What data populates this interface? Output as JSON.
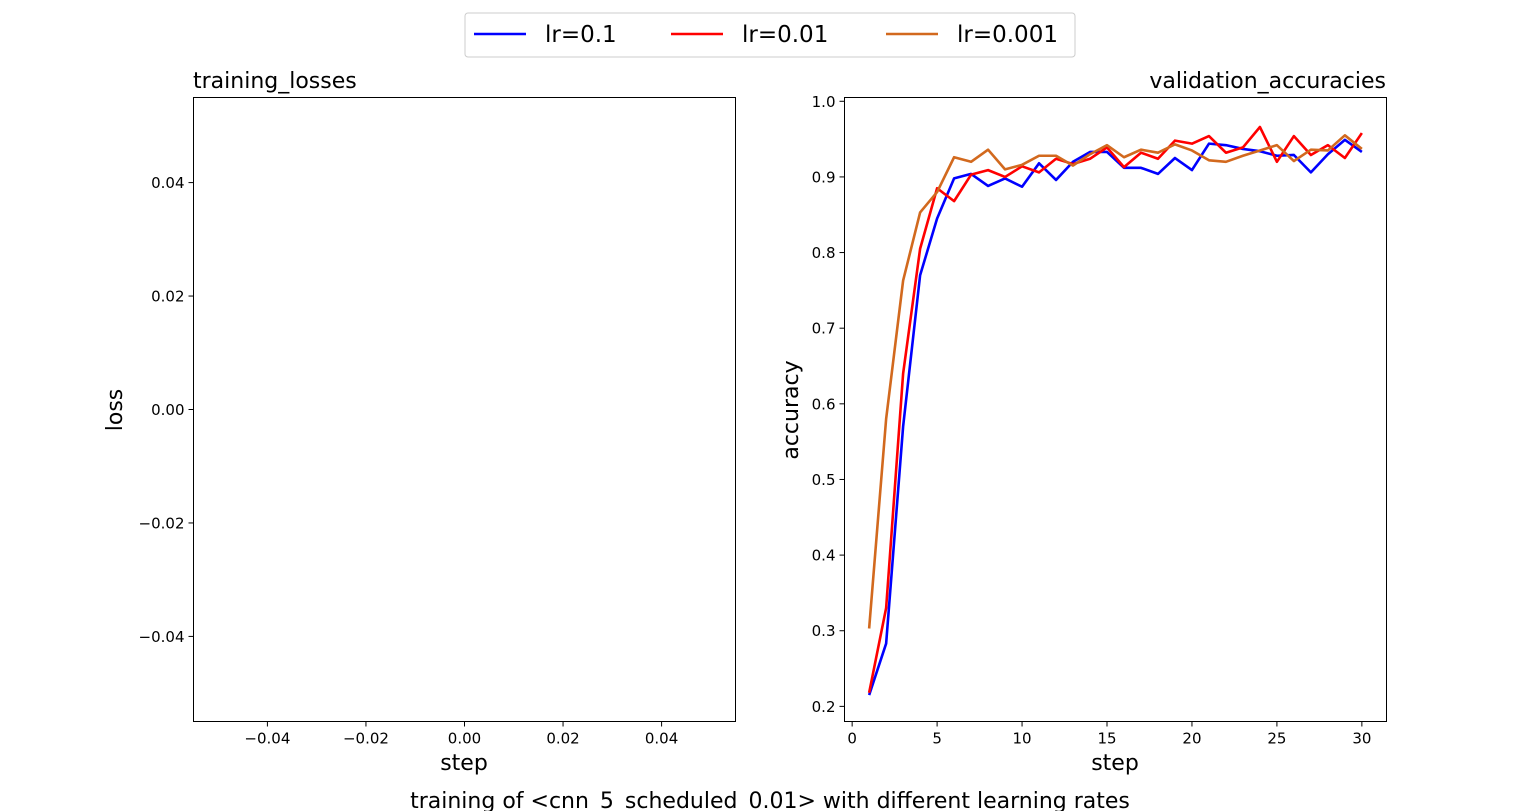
{
  "figure": {
    "suptitle": "training of <cnn_5_scheduled_0.01> with different learning rates"
  },
  "legend": {
    "placement": "top-center",
    "entries": [
      {
        "label": "lr=0.1",
        "color": "#0000ff"
      },
      {
        "label": "lr=0.01",
        "color": "#ff0000"
      },
      {
        "label": "lr=0.001",
        "color": "#d2691e"
      }
    ]
  },
  "chart_data": [
    {
      "type": "line",
      "title": "training_losses",
      "xlabel": "step",
      "ylabel": "loss",
      "xlim": [
        -0.055,
        0.055
      ],
      "ylim": [
        -0.055,
        0.055
      ],
      "xticks": [
        -0.04,
        -0.02,
        0.0,
        0.02,
        0.04
      ],
      "xtick_labels": [
        "−0.04",
        "−0.02",
        "0.00",
        "0.02",
        "0.04"
      ],
      "yticks": [
        -0.04,
        -0.02,
        0.0,
        0.02,
        0.04
      ],
      "ytick_labels": [
        "−0.04",
        "−0.02",
        "0.00",
        "0.02",
        "0.04"
      ],
      "grid": false,
      "series": []
    },
    {
      "type": "line",
      "title": "validation_accuracies",
      "xlabel": "step",
      "ylabel": "accuracy",
      "xlim": [
        -0.45,
        31.45
      ],
      "ylim": [
        0.18,
        1.005
      ],
      "xticks": [
        0,
        5,
        10,
        15,
        20,
        25,
        30
      ],
      "xtick_labels": [
        "0",
        "5",
        "10",
        "15",
        "20",
        "25",
        "30"
      ],
      "yticks": [
        0.2,
        0.3,
        0.4,
        0.5,
        0.6,
        0.7,
        0.8,
        0.9,
        1.0
      ],
      "ytick_labels": [
        "0.2",
        "0.3",
        "0.4",
        "0.5",
        "0.6",
        "0.7",
        "0.8",
        "0.9",
        "1.0"
      ],
      "grid": false,
      "x": [
        1,
        2,
        3,
        4,
        5,
        6,
        7,
        8,
        9,
        10,
        11,
        12,
        13,
        14,
        15,
        16,
        17,
        18,
        19,
        20,
        21,
        22,
        23,
        24,
        25,
        26,
        27,
        28,
        29,
        30
      ],
      "series": [
        {
          "name": "lr=0.1",
          "color": "#0000ff",
          "values": [
            0.215,
            0.283,
            0.57,
            0.77,
            0.845,
            0.898,
            0.904,
            0.888,
            0.898,
            0.887,
            0.918,
            0.896,
            0.92,
            0.933,
            0.933,
            0.912,
            0.912,
            0.904,
            0.925,
            0.909,
            0.944,
            0.942,
            0.937,
            0.934,
            0.928,
            0.929,
            0.906,
            0.93,
            0.949,
            0.933
          ]
        },
        {
          "name": "lr=0.01",
          "color": "#ff0000",
          "values": [
            0.218,
            0.33,
            0.64,
            0.805,
            0.885,
            0.868,
            0.903,
            0.909,
            0.9,
            0.914,
            0.906,
            0.924,
            0.917,
            0.924,
            0.939,
            0.913,
            0.932,
            0.924,
            0.948,
            0.944,
            0.954,
            0.932,
            0.939,
            0.966,
            0.92,
            0.954,
            0.929,
            0.942,
            0.925,
            0.958
          ]
        },
        {
          "name": "lr=0.001",
          "color": "#d2691e",
          "values": [
            0.303,
            0.58,
            0.763,
            0.853,
            0.88,
            0.926,
            0.92,
            0.936,
            0.91,
            0.916,
            0.928,
            0.928,
            0.915,
            0.93,
            0.942,
            0.926,
            0.936,
            0.932,
            0.943,
            0.935,
            0.922,
            0.92,
            0.928,
            0.935,
            0.942,
            0.921,
            0.936,
            0.935,
            0.955,
            0.937
          ]
        }
      ]
    }
  ]
}
